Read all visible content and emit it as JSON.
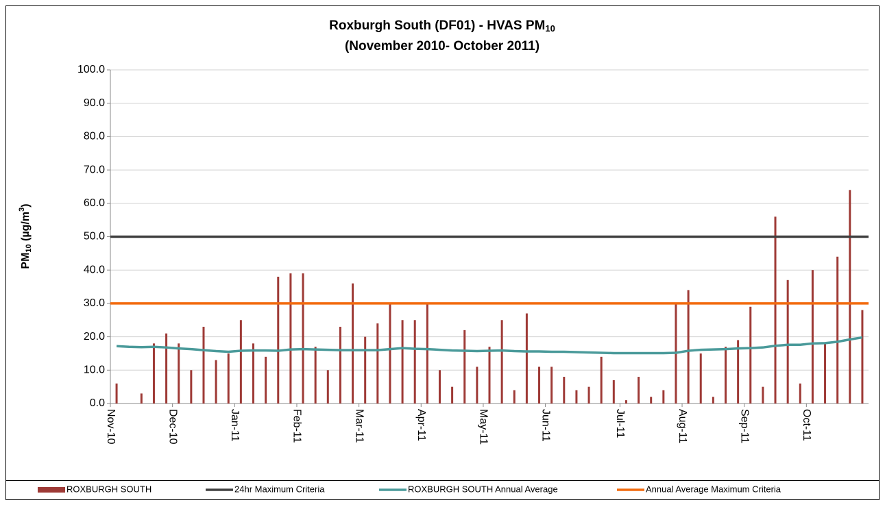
{
  "chart_data": {
    "type": "bar",
    "title": {
      "text": "Roxburgh South (DF01) - HVAS PM",
      "sub": "10"
    },
    "subtitle": "(November 2010- October 2011)",
    "ylabel": [
      "PM",
      "10",
      " (µg/m",
      "3",
      ")"
    ],
    "categories": [
      "Nov-10",
      null,
      null,
      null,
      null,
      "Dec-10",
      null,
      null,
      null,
      null,
      "Jan-11",
      null,
      null,
      null,
      null,
      "Feb-11",
      null,
      null,
      null,
      null,
      "Mar-11",
      null,
      null,
      null,
      null,
      "Apr-11",
      null,
      null,
      null,
      null,
      "May-11",
      null,
      null,
      null,
      null,
      "Jun-11",
      null,
      null,
      null,
      null,
      null,
      "Jul-11",
      null,
      null,
      null,
      null,
      "Aug-11",
      null,
      null,
      null,
      null,
      "Sep-11",
      null,
      null,
      null,
      null,
      "Oct-11",
      null,
      null,
      null,
      null
    ],
    "ylim": [
      0,
      100
    ],
    "yticks": [
      {
        "value": 0,
        "label": "0.0"
      },
      {
        "value": 10,
        "label": "10.0"
      },
      {
        "value": 20,
        "label": "20.0"
      },
      {
        "value": 30,
        "label": "30.0"
      },
      {
        "value": 40,
        "label": "40.0"
      },
      {
        "value": 50,
        "label": "50.0"
      },
      {
        "value": 60,
        "label": "60.0"
      },
      {
        "value": 70,
        "label": "70.0"
      },
      {
        "value": 80,
        "label": "80.0"
      },
      {
        "value": 90,
        "label": "90.0"
      },
      {
        "value": 100,
        "label": "100.0"
      }
    ],
    "grid": true,
    "series": [
      {
        "name": "ROXBURGH SOUTH",
        "type": "bar",
        "color": "#9e3a36",
        "values": [
          6,
          null,
          3,
          18,
          21,
          18,
          10,
          23,
          13,
          15,
          25,
          18,
          14,
          38,
          39,
          39,
          17,
          10,
          23,
          36,
          20,
          24,
          30,
          25,
          25,
          30,
          10,
          5,
          22,
          11,
          17,
          25,
          4,
          27,
          11,
          11,
          8,
          4,
          5,
          14,
          7,
          1,
          8,
          2,
          4,
          30,
          34,
          15,
          2,
          17,
          19,
          29,
          5,
          56,
          37,
          6,
          40,
          18,
          44,
          64,
          28
        ]
      },
      {
        "name": "24hr Maximum Criteria",
        "type": "hline",
        "color": "#404040",
        "value": 50
      },
      {
        "name": "ROXBURGH SOUTH Annual Average",
        "type": "line",
        "color": "#4a9a9a",
        "values": [
          17.2,
          17,
          16.9,
          17,
          16.8,
          16.5,
          16.3,
          16,
          15.7,
          15.5,
          15.8,
          15.9,
          15.9,
          15.8,
          16.2,
          16.3,
          16.2,
          16.1,
          16,
          16,
          16,
          16,
          16.3,
          16.6,
          16.4,
          16.3,
          16.1,
          15.9,
          15.8,
          15.7,
          15.8,
          15.9,
          15.7,
          15.6,
          15.6,
          15.5,
          15.5,
          15.4,
          15.3,
          15.2,
          15.1,
          15.1,
          15.1,
          15.1,
          15.1,
          15.2,
          15.8,
          16.1,
          16.2,
          16.3,
          16.5,
          16.6,
          16.8,
          17.3,
          17.6,
          17.6,
          18,
          18.1,
          18.5,
          19.2,
          19.8
        ]
      },
      {
        "name": "Annual Average Maximum Criteria",
        "type": "hline",
        "color": "#f26b0f",
        "value": 30
      }
    ]
  }
}
